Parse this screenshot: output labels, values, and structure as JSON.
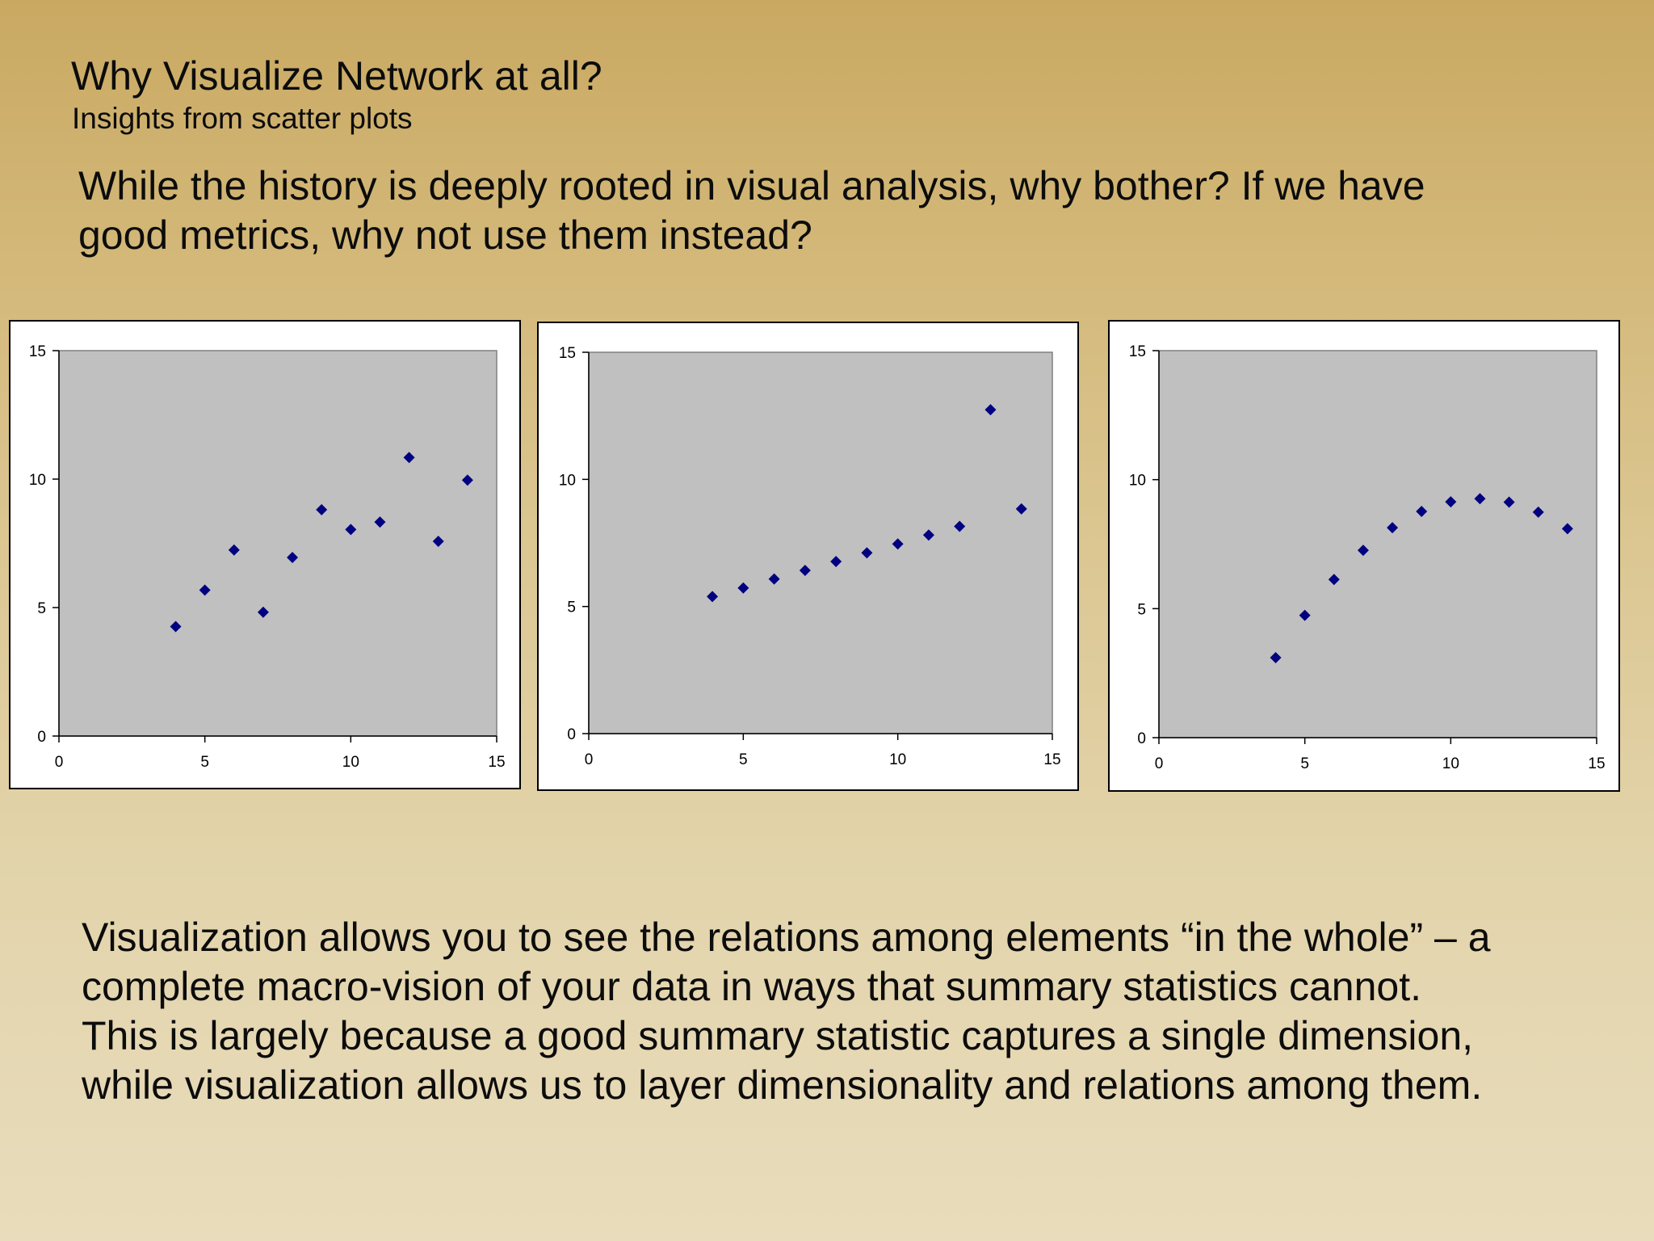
{
  "slide": {
    "title": "Why Visualize Network at all?",
    "subtitle": "Insights from scatter plots",
    "intro_lines": [
      "While the history is deeply rooted in visual analysis, why bother?   If we have",
      "good metrics, why not use them instead?"
    ],
    "body_lines": [
      "Visualization allows you to see the relations among elements “in the whole” – a",
      "complete macro-vision of your data in ways that summary statistics cannot.",
      "This is largely because a good summary statistic captures a single dimension,",
      "while visualization allows us to layer dimensionality and relations among them."
    ]
  },
  "colors": {
    "plot_area": "#c0c0c0",
    "plot_border": "#808080",
    "marker": "#000080",
    "panel_bg": "#ffffff"
  },
  "chart_data": [
    {
      "type": "scatter",
      "title": "",
      "xlabel": "",
      "ylabel": "",
      "xlim": [
        0,
        15
      ],
      "ylim": [
        0,
        15
      ],
      "xticks": [
        0,
        5,
        10,
        15
      ],
      "yticks": [
        0,
        5,
        10,
        15
      ],
      "grid": false,
      "marker": "diamond",
      "series": [
        {
          "x": [
            4,
            5,
            6,
            7,
            8,
            9,
            10,
            11,
            12,
            13,
            14
          ],
          "y": [
            4.26,
            5.68,
            7.24,
            4.82,
            6.95,
            8.81,
            8.04,
            8.33,
            10.84,
            7.58,
            9.96
          ]
        }
      ]
    },
    {
      "type": "scatter",
      "title": "",
      "xlabel": "",
      "ylabel": "",
      "xlim": [
        0,
        15
      ],
      "ylim": [
        0,
        15
      ],
      "xticks": [
        0,
        5,
        10,
        15
      ],
      "yticks": [
        0,
        5,
        10,
        15
      ],
      "grid": false,
      "marker": "diamond",
      "series": [
        {
          "x": [
            4,
            5,
            6,
            7,
            8,
            9,
            10,
            11,
            12,
            13,
            14
          ],
          "y": [
            5.39,
            5.73,
            6.08,
            6.42,
            6.77,
            7.11,
            7.46,
            7.81,
            8.15,
            12.74,
            8.84
          ]
        }
      ]
    },
    {
      "type": "scatter",
      "title": "",
      "xlabel": "",
      "ylabel": "",
      "xlim": [
        0,
        15
      ],
      "ylim": [
        0,
        15
      ],
      "xticks": [
        0,
        5,
        10,
        15
      ],
      "yticks": [
        0,
        5,
        10,
        15
      ],
      "grid": false,
      "marker": "diamond",
      "series": [
        {
          "x": [
            4,
            5,
            6,
            7,
            8,
            9,
            10,
            11,
            12,
            13,
            14
          ],
          "y": [
            3.1,
            4.74,
            6.13,
            7.26,
            8.14,
            8.77,
            9.14,
            9.26,
            9.13,
            8.74,
            8.1
          ]
        }
      ]
    }
  ]
}
